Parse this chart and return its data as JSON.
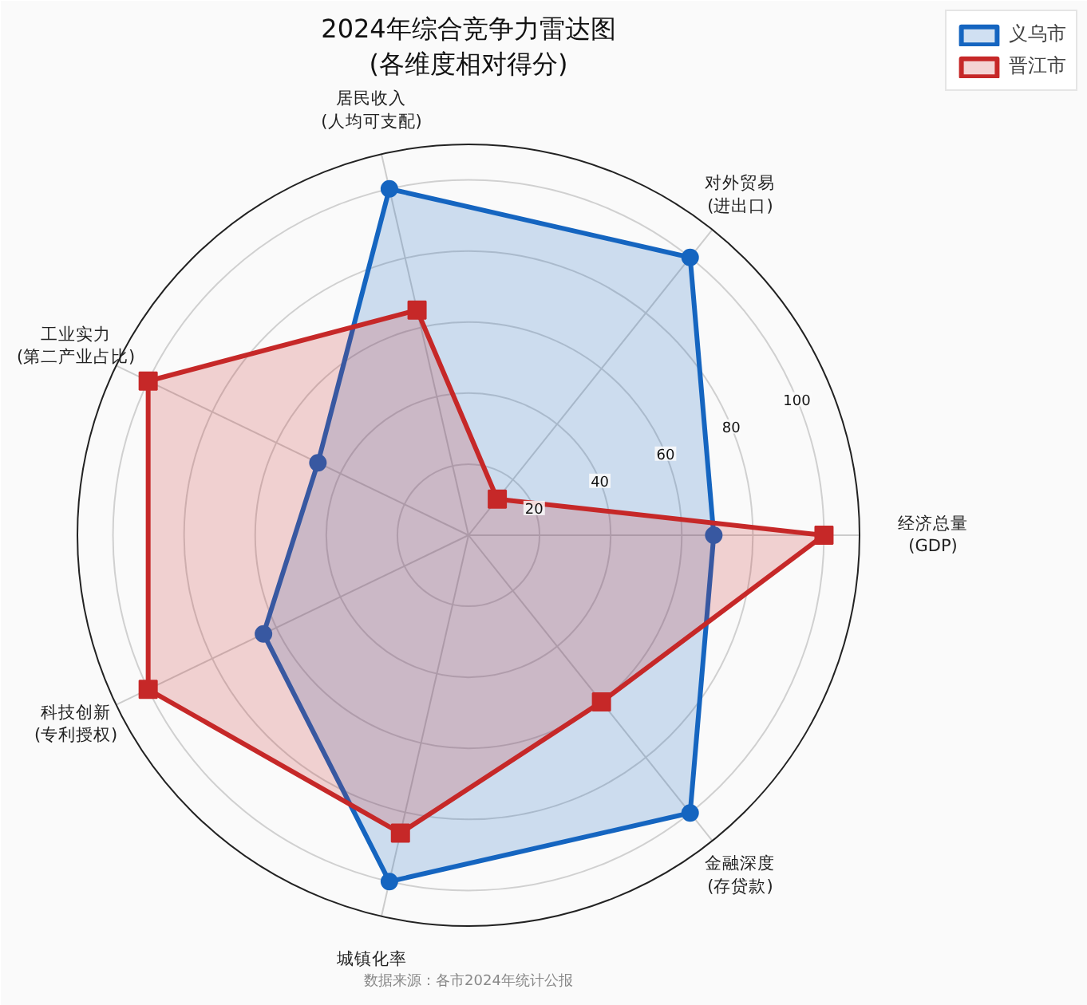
{
  "chart_data": {
    "type": "radar",
    "title": "2024年综合竞争力雷达图\n(各维度相对得分)",
    "categories": [
      "居民收入\n(人均可支配)",
      "对外贸易\n(进出口)",
      "经济总量\n(GDP)",
      "金融深度\n(存贷款)",
      "城镇化率",
      "科技创新\n(专利授权)",
      "工业实力\n(第二产业占比)"
    ],
    "series": [
      {
        "name": "义乌市",
        "color": "#1565c0",
        "marker": "circle",
        "values": [
          100,
          100,
          69,
          100,
          100,
          64,
          47
        ]
      },
      {
        "name": "晋江市",
        "color": "#c62828",
        "marker": "square",
        "values": [
          65,
          13,
          100,
          60,
          86,
          100,
          100
        ]
      }
    ],
    "ylim": [
      0,
      110
    ],
    "yticks": [
      20,
      40,
      60,
      80,
      100
    ],
    "grid": true,
    "legend": "top right",
    "annotations": [
      "数据来源：各市2024年统计公报"
    ]
  }
}
